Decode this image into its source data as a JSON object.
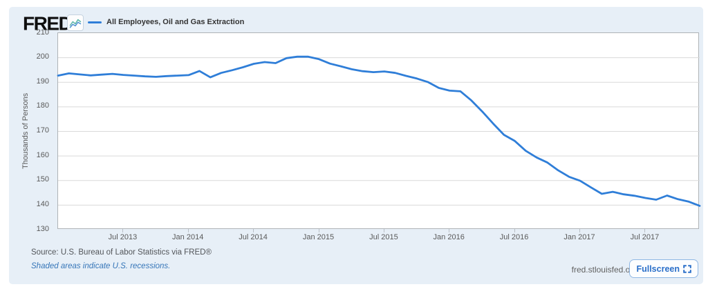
{
  "header": {
    "logo": "FRED",
    "logo_registered": "®",
    "legend": {
      "series_label": "All Employees, Oil and Gas Extraction",
      "series_color": "#2f7ed8"
    }
  },
  "chart_data": {
    "type": "line",
    "title": "All Employees, Oil and Gas Extraction",
    "xlabel": "",
    "ylabel": "Thousands of Persons",
    "ylim": [
      130,
      210
    ],
    "yticks": [
      130,
      140,
      150,
      160,
      170,
      180,
      190,
      200,
      210
    ],
    "grid": "horizontal",
    "legend_position": "top-left",
    "x": [
      "Jan 2013",
      "Feb 2013",
      "Mar 2013",
      "Apr 2013",
      "May 2013",
      "Jun 2013",
      "Jul 2013",
      "Aug 2013",
      "Sep 2013",
      "Oct 2013",
      "Nov 2013",
      "Dec 2013",
      "Jan 2014",
      "Feb 2014",
      "Mar 2014",
      "Apr 2014",
      "May 2014",
      "Jun 2014",
      "Jul 2014",
      "Aug 2014",
      "Sep 2014",
      "Oct 2014",
      "Nov 2014",
      "Dec 2014",
      "Jan 2015",
      "Feb 2015",
      "Mar 2015",
      "Apr 2015",
      "May 2015",
      "Jun 2015",
      "Jul 2015",
      "Aug 2015",
      "Sep 2015",
      "Oct 2015",
      "Nov 2015",
      "Dec 2015",
      "Jan 2016",
      "Feb 2016",
      "Mar 2016",
      "Apr 2016",
      "May 2016",
      "Jun 2016",
      "Jul 2016",
      "Aug 2016",
      "Sep 2016",
      "Oct 2016",
      "Nov 2016",
      "Dec 2016",
      "Jan 2017",
      "Feb 2017",
      "Mar 2017",
      "Apr 2017",
      "May 2017",
      "Jun 2017",
      "Jul 2017",
      "Aug 2017",
      "Sep 2017",
      "Oct 2017",
      "Nov 2017",
      "Dec 2017"
    ],
    "xticks": [
      "Jul 2013",
      "Jan 2014",
      "Jul 2014",
      "Jan 2015",
      "Jul 2015",
      "Jan 2016",
      "Jul 2016",
      "Jan 2017",
      "Jul 2017"
    ],
    "series": [
      {
        "name": "All Employees, Oil and Gas Extraction",
        "color": "#2f7ed8",
        "values": [
          192.7,
          193.6,
          193.2,
          192.8,
          193.1,
          193.4,
          193.0,
          192.7,
          192.4,
          192.2,
          192.5,
          192.7,
          192.9,
          194.6,
          192.0,
          193.8,
          194.9,
          196.1,
          197.5,
          198.2,
          197.8,
          199.8,
          200.4,
          200.4,
          199.4,
          197.6,
          196.5,
          195.3,
          194.5,
          194.1,
          194.4,
          193.8,
          192.6,
          191.5,
          190.1,
          187.7,
          186.6,
          186.3,
          182.6,
          178.1,
          173.2,
          168.6,
          166.1,
          162.1,
          159.4,
          157.3,
          154.1,
          151.5,
          149.9,
          147.2,
          144.6,
          145.4,
          144.4,
          143.8,
          142.9,
          142.2,
          143.9,
          142.4,
          141.4,
          139.7
        ]
      }
    ]
  },
  "footer": {
    "source": "Source: U.S. Bureau of Labor Statistics via FRED®",
    "recession_note": "Shaded areas indicate U.S. recessions.",
    "site": "fred.stlouisfed.org",
    "fullscreen_label": "Fullscreen"
  },
  "colors": {
    "widget_bg": "#e7eff7",
    "gridline": "#d9d9d9",
    "plot_border": "#aeb2b6",
    "axis_text": "#595959",
    "accent_blue": "#2f7ed8",
    "link_blue": "#3575b8",
    "button_blue": "#2a6fc9"
  }
}
